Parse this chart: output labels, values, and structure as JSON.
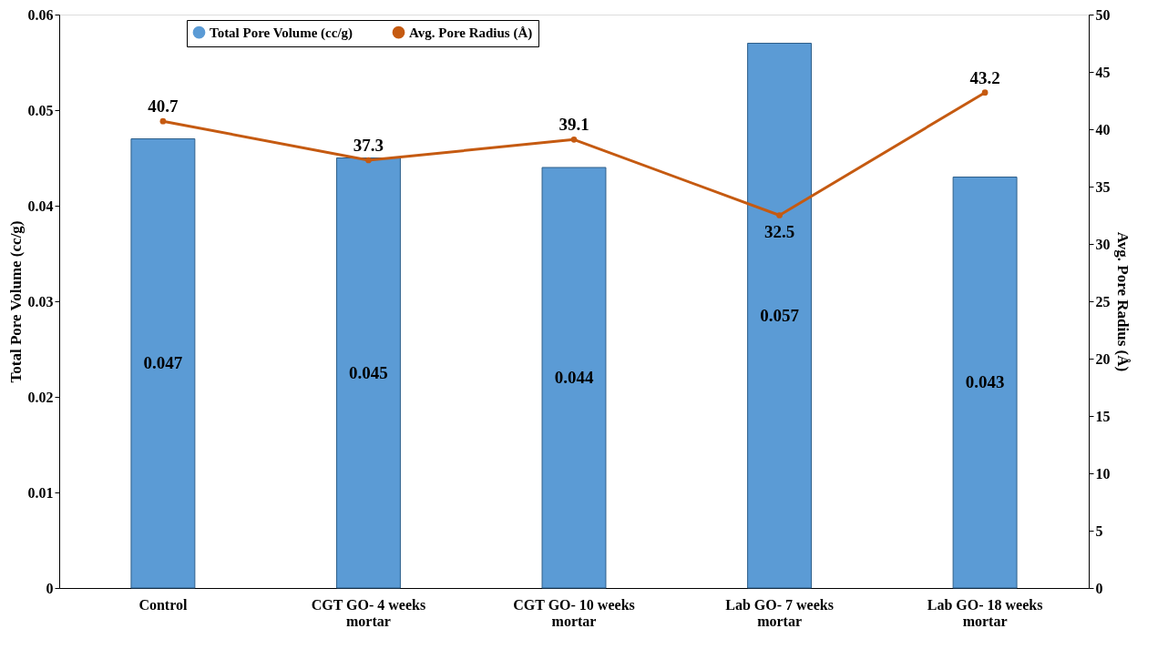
{
  "chart_data": {
    "type": "bar",
    "categories": [
      "Control",
      "CGT GO-  4 weeks\nmortar",
      "CGT GO-  10 weeks\nmortar",
      "Lab GO-  7 weeks\nmortar",
      "Lab GO-  18 weeks\nmortar"
    ],
    "series": [
      {
        "name": "Total Pore Volume (cc/g)",
        "color": "#5b9bd5",
        "values": [
          0.047,
          0.045,
          0.044,
          0.057,
          0.043
        ]
      },
      {
        "name": "Avg. Pore Radius (Å)",
        "type": "line",
        "axis": "y2",
        "color": "#c55a11",
        "values": [
          40.7,
          37.3,
          39.1,
          32.5,
          43.2
        ]
      }
    ],
    "ylabel": "Total Pore Volume (cc/g)",
    "y2label": "Avg. Pore Radius (Å)",
    "ylim": [
      0,
      0.06
    ],
    "yticks": [
      0,
      0.01,
      0.02,
      0.03,
      0.04,
      0.05,
      0.06
    ],
    "y2lim": [
      0,
      50
    ],
    "y2ticks": [
      0,
      5,
      10,
      15,
      20,
      25,
      30,
      35,
      40,
      45,
      50
    ],
    "data_labels": true,
    "legend": "top",
    "grid": false,
    "marker": "circle",
    "line_style": "solid"
  }
}
